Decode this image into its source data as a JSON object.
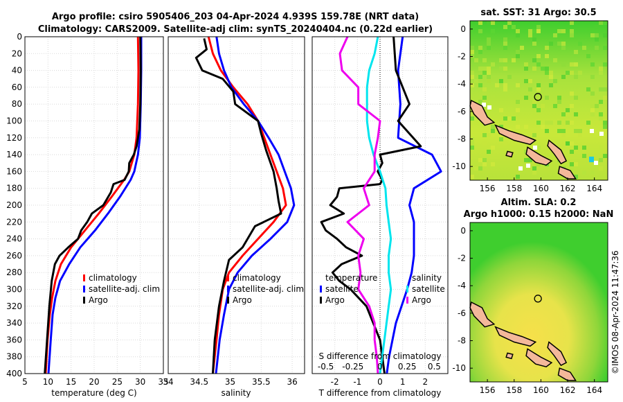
{
  "header": {
    "title_line1": "Argo profile: csiro 5905406_203 04-Apr-2024 4.939S 159.78E (NRT data)",
    "title_line2": "Climatology: CARS2009. Satellite-adj clim: synTS_20240404.nc (0.22d earlier)"
  },
  "colors": {
    "climatology": "#ff0000",
    "satellite": "#0000ff",
    "argo": "#000000",
    "s_diff_satellite": "#00e5ee",
    "s_diff_argo": "#ee00ee"
  },
  "chart_data": [
    {
      "type": "line",
      "id": "temperature",
      "xlabel": "temperature (deg C)",
      "ylabel": "",
      "xlim": [
        5,
        35
      ],
      "ylim": [
        400,
        0
      ],
      "xticks": [
        "5",
        "10",
        "15",
        "20",
        "25",
        "30",
        "35"
      ],
      "yticks": [
        "0",
        "20",
        "40",
        "60",
        "80",
        "100",
        "120",
        "140",
        "160",
        "180",
        "200",
        "220",
        "240",
        "260",
        "280",
        "300",
        "320",
        "340",
        "360",
        "380",
        "400"
      ],
      "legend": [
        "climatology",
        "satellite-adj. clim",
        "Argo"
      ],
      "series": [
        {
          "name": "climatology",
          "depth": [
            0,
            40,
            80,
            120,
            140,
            160,
            170,
            190,
            210,
            230,
            250,
            270,
            290,
            310,
            330,
            360,
            400
          ],
          "values": [
            29.5,
            29.6,
            29.5,
            29.2,
            28.7,
            27.6,
            26.5,
            23.8,
            21.0,
            18.0,
            15.0,
            12.8,
            11.6,
            10.9,
            10.4,
            9.9,
            9.5
          ]
        },
        {
          "name": "satellite-adj. clim",
          "depth": [
            0,
            40,
            80,
            120,
            140,
            160,
            170,
            190,
            210,
            230,
            250,
            270,
            290,
            310,
            330,
            360,
            400
          ],
          "values": [
            30.2,
            30.2,
            30.1,
            29.9,
            29.5,
            28.7,
            27.9,
            25.6,
            23.0,
            20.2,
            17.0,
            14.6,
            12.6,
            11.6,
            11.0,
            10.6,
            10.1
          ]
        },
        {
          "name": "Argo",
          "depth": [
            0,
            40,
            80,
            110,
            130,
            140,
            150,
            160,
            170,
            175,
            185,
            200,
            210,
            220,
            230,
            240,
            250,
            260,
            270,
            290,
            320,
            360,
            400
          ],
          "values": [
            30.0,
            30.1,
            30.0,
            29.8,
            29.2,
            28.6,
            27.6,
            27.5,
            26.6,
            24.2,
            23.6,
            22.0,
            19.5,
            18.5,
            17.2,
            16.5,
            14.4,
            12.5,
            11.5,
            10.8,
            10.3,
            9.8,
            9.3
          ]
        }
      ]
    },
    {
      "type": "line",
      "id": "salinity",
      "xlabel": "salinity",
      "ylabel": "",
      "xlim": [
        34,
        36.2
      ],
      "ylim": [
        400,
        0
      ],
      "xticks": [
        "34",
        "34.5",
        "35",
        "35.5",
        "36"
      ],
      "legend": [
        "climatology",
        "satellite-adj. clim",
        "Argo"
      ],
      "series": [
        {
          "name": "climatology",
          "depth": [
            0,
            20,
            40,
            60,
            80,
            100,
            120,
            140,
            160,
            180,
            200,
            220,
            240,
            260,
            280,
            300,
            330,
            360,
            400
          ],
          "values": [
            34.65,
            34.72,
            34.85,
            35.05,
            35.28,
            35.45,
            35.55,
            35.65,
            35.75,
            35.85,
            35.9,
            35.7,
            35.45,
            35.2,
            34.98,
            34.88,
            34.82,
            34.78,
            34.72
          ]
        },
        {
          "name": "satellite-adj. clim",
          "depth": [
            0,
            20,
            40,
            60,
            80,
            100,
            120,
            140,
            160,
            180,
            200,
            220,
            240,
            260,
            280,
            300,
            330,
            360,
            400
          ],
          "values": [
            34.78,
            34.82,
            34.9,
            35.02,
            35.22,
            35.45,
            35.62,
            35.78,
            35.88,
            35.98,
            36.03,
            35.92,
            35.65,
            35.35,
            35.12,
            34.98,
            34.9,
            34.83,
            34.77
          ]
        },
        {
          "name": "Argo",
          "depth": [
            2,
            15,
            25,
            40,
            50,
            65,
            80,
            100,
            115,
            135,
            160,
            180,
            195,
            210,
            225,
            250,
            265,
            290,
            320,
            360,
            400
          ],
          "values": [
            34.58,
            34.62,
            34.45,
            34.55,
            34.88,
            35.05,
            35.08,
            35.45,
            35.5,
            35.58,
            35.7,
            35.75,
            35.78,
            35.82,
            35.4,
            35.2,
            34.98,
            34.9,
            34.82,
            34.75,
            34.72
          ]
        }
      ]
    },
    {
      "type": "line",
      "id": "difference",
      "xlabel": "T difference from climatology",
      "xlabel_top": "S difference from climatology",
      "xlim": [
        -3,
        3
      ],
      "ylim": [
        400,
        0
      ],
      "xticks": [
        "-2",
        "-1",
        "0",
        "1",
        "2"
      ],
      "xticks_top": [
        "-0.5",
        "-0.25",
        "0",
        "0.25",
        "0.5"
      ],
      "legend": [
        "temperature",
        "satellite",
        "Argo",
        "salinity",
        "satellite",
        "Argo"
      ],
      "series": [
        {
          "name": "T satellite",
          "depth": [
            0,
            40,
            80,
            120,
            140,
            160,
            180,
            200,
            220,
            240,
            260,
            280,
            300,
            340,
            380,
            400
          ],
          "values": [
            1.0,
            0.8,
            0.9,
            0.8,
            2.3,
            2.7,
            1.5,
            1.3,
            1.5,
            1.5,
            1.5,
            1.4,
            1.2,
            0.7,
            0.4,
            0.3
          ]
        },
        {
          "name": "T Argo",
          "depth": [
            0,
            40,
            80,
            100,
            130,
            140,
            150,
            160,
            170,
            175,
            180,
            190,
            200,
            210,
            220,
            230,
            240,
            250,
            260,
            270,
            280,
            290,
            300,
            320,
            360,
            400
          ],
          "values": [
            0.6,
            0.7,
            1.3,
            0.8,
            1.8,
            0.0,
            0.1,
            -0.1,
            0.1,
            0.0,
            -1.8,
            -1.9,
            -2.2,
            -1.6,
            -2.6,
            -2.4,
            -1.9,
            -1.5,
            -0.8,
            -1.7,
            -2.1,
            -1.8,
            -1.3,
            -0.6,
            0.0,
            0.2
          ]
        },
        {
          "name": "S satellite",
          "depth": [
            0,
            20,
            40,
            60,
            80,
            100,
            120,
            140,
            160,
            180,
            200,
            220,
            240,
            260,
            280,
            300,
            320,
            340,
            360,
            380,
            400
          ],
          "values": [
            -0.02,
            -0.05,
            -0.1,
            -0.12,
            -0.12,
            -0.12,
            -0.1,
            -0.06,
            0.0,
            0.05,
            0.06,
            0.08,
            0.1,
            0.08,
            0.08,
            0.1,
            0.08,
            0.06,
            0.04,
            0.02,
            0.0
          ]
        },
        {
          "name": "S Argo",
          "depth": [
            0,
            20,
            40,
            60,
            80,
            100,
            120,
            140,
            160,
            170,
            180,
            200,
            220,
            240,
            260,
            280,
            300,
            320,
            340,
            360,
            380,
            400
          ],
          "values": [
            -0.3,
            -0.37,
            -0.35,
            -0.2,
            -0.2,
            0.0,
            -0.02,
            -0.05,
            -0.05,
            -0.1,
            -0.15,
            -0.1,
            -0.3,
            -0.15,
            -0.2,
            -0.18,
            -0.2,
            -0.1,
            -0.05,
            -0.05,
            -0.03,
            -0.02
          ]
        }
      ]
    },
    {
      "type": "heatmap",
      "id": "sst_map",
      "title": "sat. SST: 31 Argo: 30.5",
      "xlim": [
        154.7,
        165
      ],
      "ylim": [
        -11,
        0.6
      ],
      "xticks": [
        "156",
        "158",
        "160",
        "162",
        "164"
      ],
      "yticks": [
        "0",
        "-2",
        "-4",
        "-6",
        "-8",
        "-10"
      ],
      "marker": {
        "lon": 159.78,
        "lat": -4.939
      }
    },
    {
      "type": "heatmap",
      "id": "sla_map",
      "title_line1": "Altim. SLA: 0.2",
      "title_line2": "Argo h1000: 0.15 h2000: NaN",
      "xlim": [
        154.7,
        165
      ],
      "ylim": [
        -11,
        0.6
      ],
      "xticks": [
        "156",
        "158",
        "160",
        "162",
        "164"
      ],
      "yticks": [
        "0",
        "-2",
        "-4",
        "-6",
        "-8",
        "-10"
      ],
      "marker": {
        "lon": 159.78,
        "lat": -4.939
      }
    }
  ],
  "footer": {
    "stamp": "©IMOS 08-Apr-2024 11:47:36"
  }
}
